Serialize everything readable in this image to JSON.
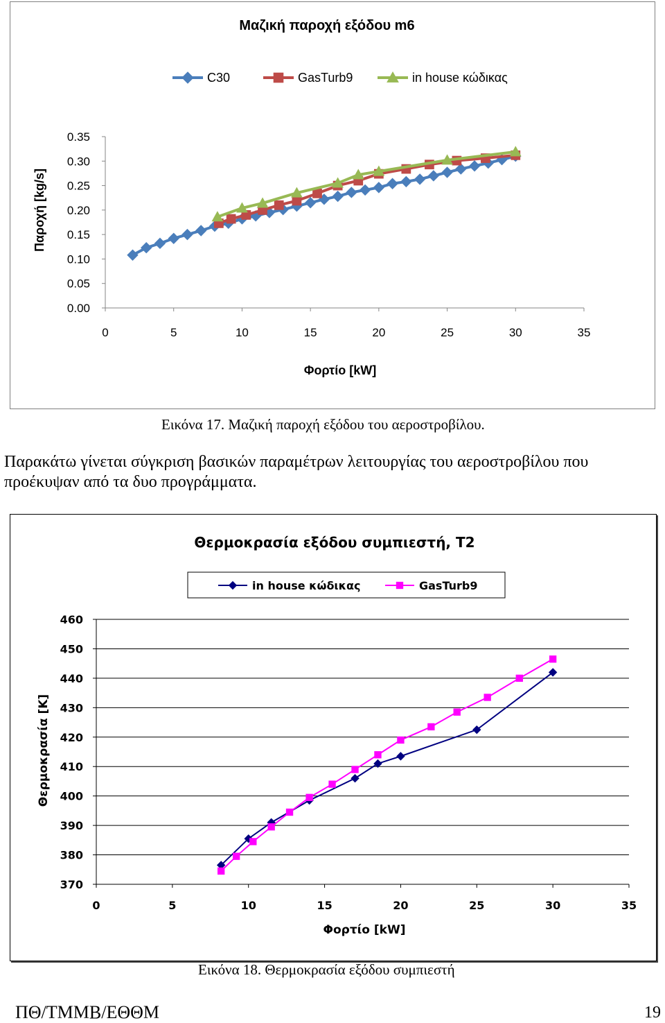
{
  "caption1": "Εικόνα 17. Μαζική παροχή εξόδου του αεροστροβίλου.",
  "paragraph": {
    "line1": "Παρακάτω γίνεται σύγκριση βασικών παραμέτρων λειτουργίας του αεροστροβίλου που",
    "line2": "προέκυψαν από τα δυο προγράμματα."
  },
  "caption2": "Εικόνα 18. Θερμοκρασία εξόδου συμπιεστή",
  "footer": {
    "left": "ΠΘ/ΤΜΜΒ/ΕΘΘΜ",
    "page": "19"
  },
  "chart_data": [
    {
      "type": "line",
      "title": "Μαζική παροχή εξόδου m6",
      "xlabel": "Φορτίο [kW]",
      "ylabel": "Παροχή [kg/s]",
      "xlim": [
        0,
        35
      ],
      "ylim": [
        0.0,
        0.35
      ],
      "xticks": [
        "0",
        "5",
        "10",
        "15",
        "20",
        "25",
        "30",
        "35"
      ],
      "yticks": [
        "0.00",
        "0.05",
        "0.10",
        "0.15",
        "0.20",
        "0.25",
        "0.30",
        "0.35"
      ],
      "grid": false,
      "legend_position": "top",
      "series": [
        {
          "name": "C30",
          "color": "#4a7ebb",
          "marker": "diamond",
          "x": [
            2,
            3,
            4,
            5,
            6,
            7,
            8,
            9,
            10,
            11,
            12,
            13,
            14,
            15,
            16,
            17,
            18,
            19,
            20,
            21,
            22,
            23,
            24,
            25,
            26,
            27,
            28,
            29,
            30
          ],
          "y": [
            0.108,
            0.123,
            0.132,
            0.142,
            0.15,
            0.158,
            0.167,
            0.173,
            0.182,
            0.188,
            0.195,
            0.201,
            0.208,
            0.215,
            0.222,
            0.228,
            0.236,
            0.241,
            0.246,
            0.254,
            0.258,
            0.263,
            0.27,
            0.277,
            0.284,
            0.29,
            0.296,
            0.303,
            0.31
          ]
        },
        {
          "name": "GasTurb9",
          "color": "#be4b48",
          "marker": "square",
          "x": [
            8.3,
            9.2,
            10.3,
            11.5,
            12.7,
            14,
            15.5,
            17,
            18.5,
            20,
            22,
            23.7,
            25.7,
            27.8,
            30
          ],
          "y": [
            0.173,
            0.182,
            0.19,
            0.2,
            0.21,
            0.219,
            0.234,
            0.25,
            0.26,
            0.274,
            0.284,
            0.293,
            0.301,
            0.306,
            0.312
          ]
        },
        {
          "name": "in house κώδικας",
          "color": "#98b954",
          "marker": "triangle",
          "x": [
            8.2,
            10,
            11.5,
            14,
            17,
            18.5,
            20,
            25,
            30
          ],
          "y": [
            0.186,
            0.204,
            0.214,
            0.235,
            0.255,
            0.272,
            0.279,
            0.302,
            0.319
          ]
        }
      ]
    },
    {
      "type": "line",
      "title": "Θερμοκρασία εξόδου συμπιεστή, T2",
      "xlabel": "Φορτίο [kW]",
      "ylabel": "Θερμοκρασία [K]",
      "xlim": [
        0,
        35
      ],
      "ylim": [
        370,
        460
      ],
      "xticks": [
        "0",
        "5",
        "10",
        "15",
        "20",
        "25",
        "30",
        "35"
      ],
      "yticks": [
        "370",
        "380",
        "390",
        "400",
        "410",
        "420",
        "430",
        "440",
        "450",
        "460"
      ],
      "grid": true,
      "legend_position": "top",
      "series": [
        {
          "name": "in house κώδικας",
          "color": "#000080",
          "marker": "diamond",
          "x": [
            8.2,
            10,
            11.5,
            14,
            17,
            18.5,
            20,
            25,
            30
          ],
          "y": [
            376.5,
            385.5,
            391,
            398.5,
            406,
            411,
            413.5,
            422.5,
            442
          ]
        },
        {
          "name": "GasTurb9",
          "color": "#ff00ff",
          "marker": "square",
          "x": [
            8.2,
            9.2,
            10.3,
            11.5,
            12.7,
            14,
            15.5,
            17,
            18.5,
            20,
            22,
            23.7,
            25.7,
            27.8,
            30
          ],
          "y": [
            374.5,
            379.5,
            384.5,
            389.5,
            394.5,
            399.5,
            404,
            409,
            414,
            419,
            423.5,
            428.5,
            433.5,
            440,
            446.5
          ]
        }
      ]
    }
  ]
}
